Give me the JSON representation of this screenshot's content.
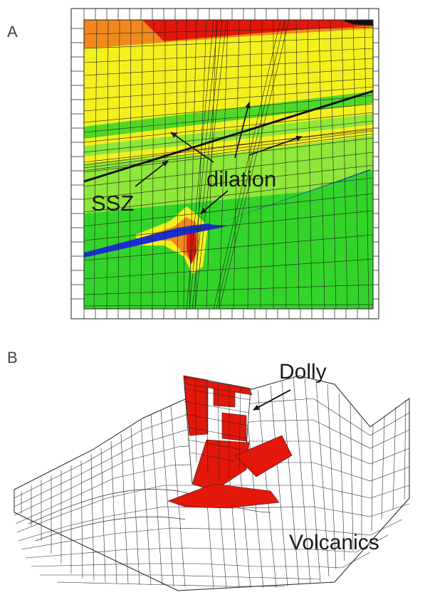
{
  "panels": {
    "a": {
      "label": "A",
      "annotations": {
        "dilation": "dilation",
        "ssz": "SSZ"
      }
    },
    "b": {
      "label": "B",
      "annotations": {
        "dolly": "Dolly",
        "volcanics": "Volcanics"
      }
    }
  },
  "colors": {
    "red": "#e3170a",
    "orange": "#f08a1c",
    "yellow": "#f4f01e",
    "light_green": "#8ee83a",
    "green": "#33d42a",
    "blue": "#1a2fd0",
    "mesh_line": "#1f1f1f",
    "fault_red": "#e3170a"
  }
}
